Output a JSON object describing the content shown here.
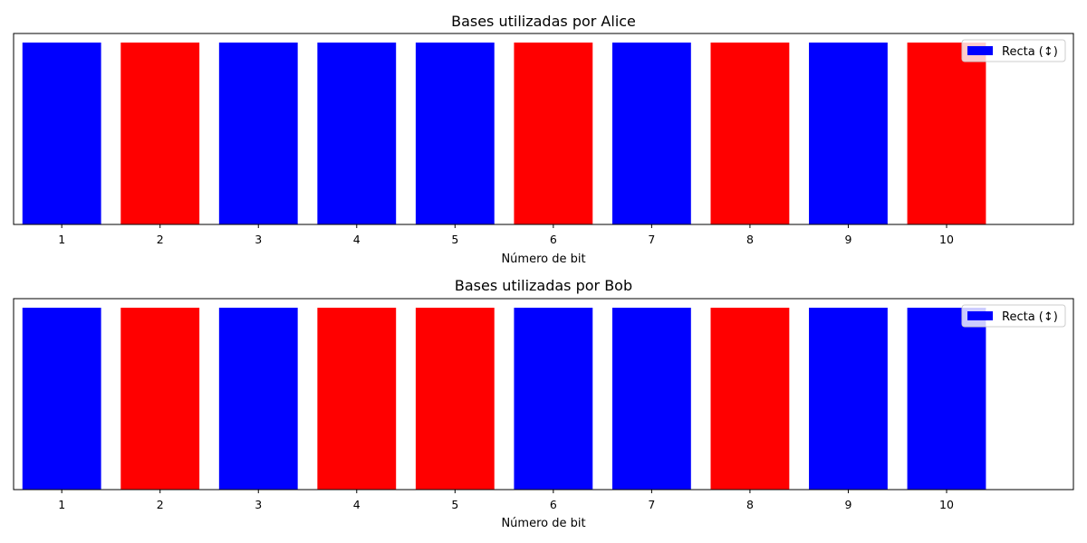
{
  "chart_data": [
    {
      "type": "bar",
      "title": "Bases utilizadas por Alice",
      "xlabel": "Número de bit",
      "ylabel": "",
      "categories": [
        "1",
        "2",
        "3",
        "4",
        "5",
        "6",
        "7",
        "8",
        "9",
        "10"
      ],
      "values": [
        1,
        1,
        1,
        1,
        1,
        1,
        1,
        1,
        1,
        1
      ],
      "bar_colors": [
        "#0000ff",
        "#ff0000",
        "#0000ff",
        "#0000ff",
        "#0000ff",
        "#ff0000",
        "#0000ff",
        "#ff0000",
        "#0000ff",
        "#ff0000"
      ],
      "ylim": [
        0,
        1.05
      ],
      "yticks_visible": false,
      "grid": false,
      "legend": {
        "position": "top-right",
        "entries": [
          {
            "label": "Recta (↕)",
            "color": "#0000ff"
          }
        ]
      }
    },
    {
      "type": "bar",
      "title": "Bases utilizadas por Bob",
      "xlabel": "Número de bit",
      "ylabel": "",
      "categories": [
        "1",
        "2",
        "3",
        "4",
        "5",
        "6",
        "7",
        "8",
        "9",
        "10"
      ],
      "values": [
        1,
        1,
        1,
        1,
        1,
        1,
        1,
        1,
        1,
        1
      ],
      "bar_colors": [
        "#0000ff",
        "#ff0000",
        "#0000ff",
        "#ff0000",
        "#ff0000",
        "#0000ff",
        "#0000ff",
        "#ff0000",
        "#0000ff",
        "#0000ff"
      ],
      "ylim": [
        0,
        1.05
      ],
      "yticks_visible": false,
      "grid": false,
      "legend": {
        "position": "top-right",
        "entries": [
          {
            "label": "Recta (↕)",
            "color": "#0000ff"
          }
        ]
      }
    }
  ]
}
